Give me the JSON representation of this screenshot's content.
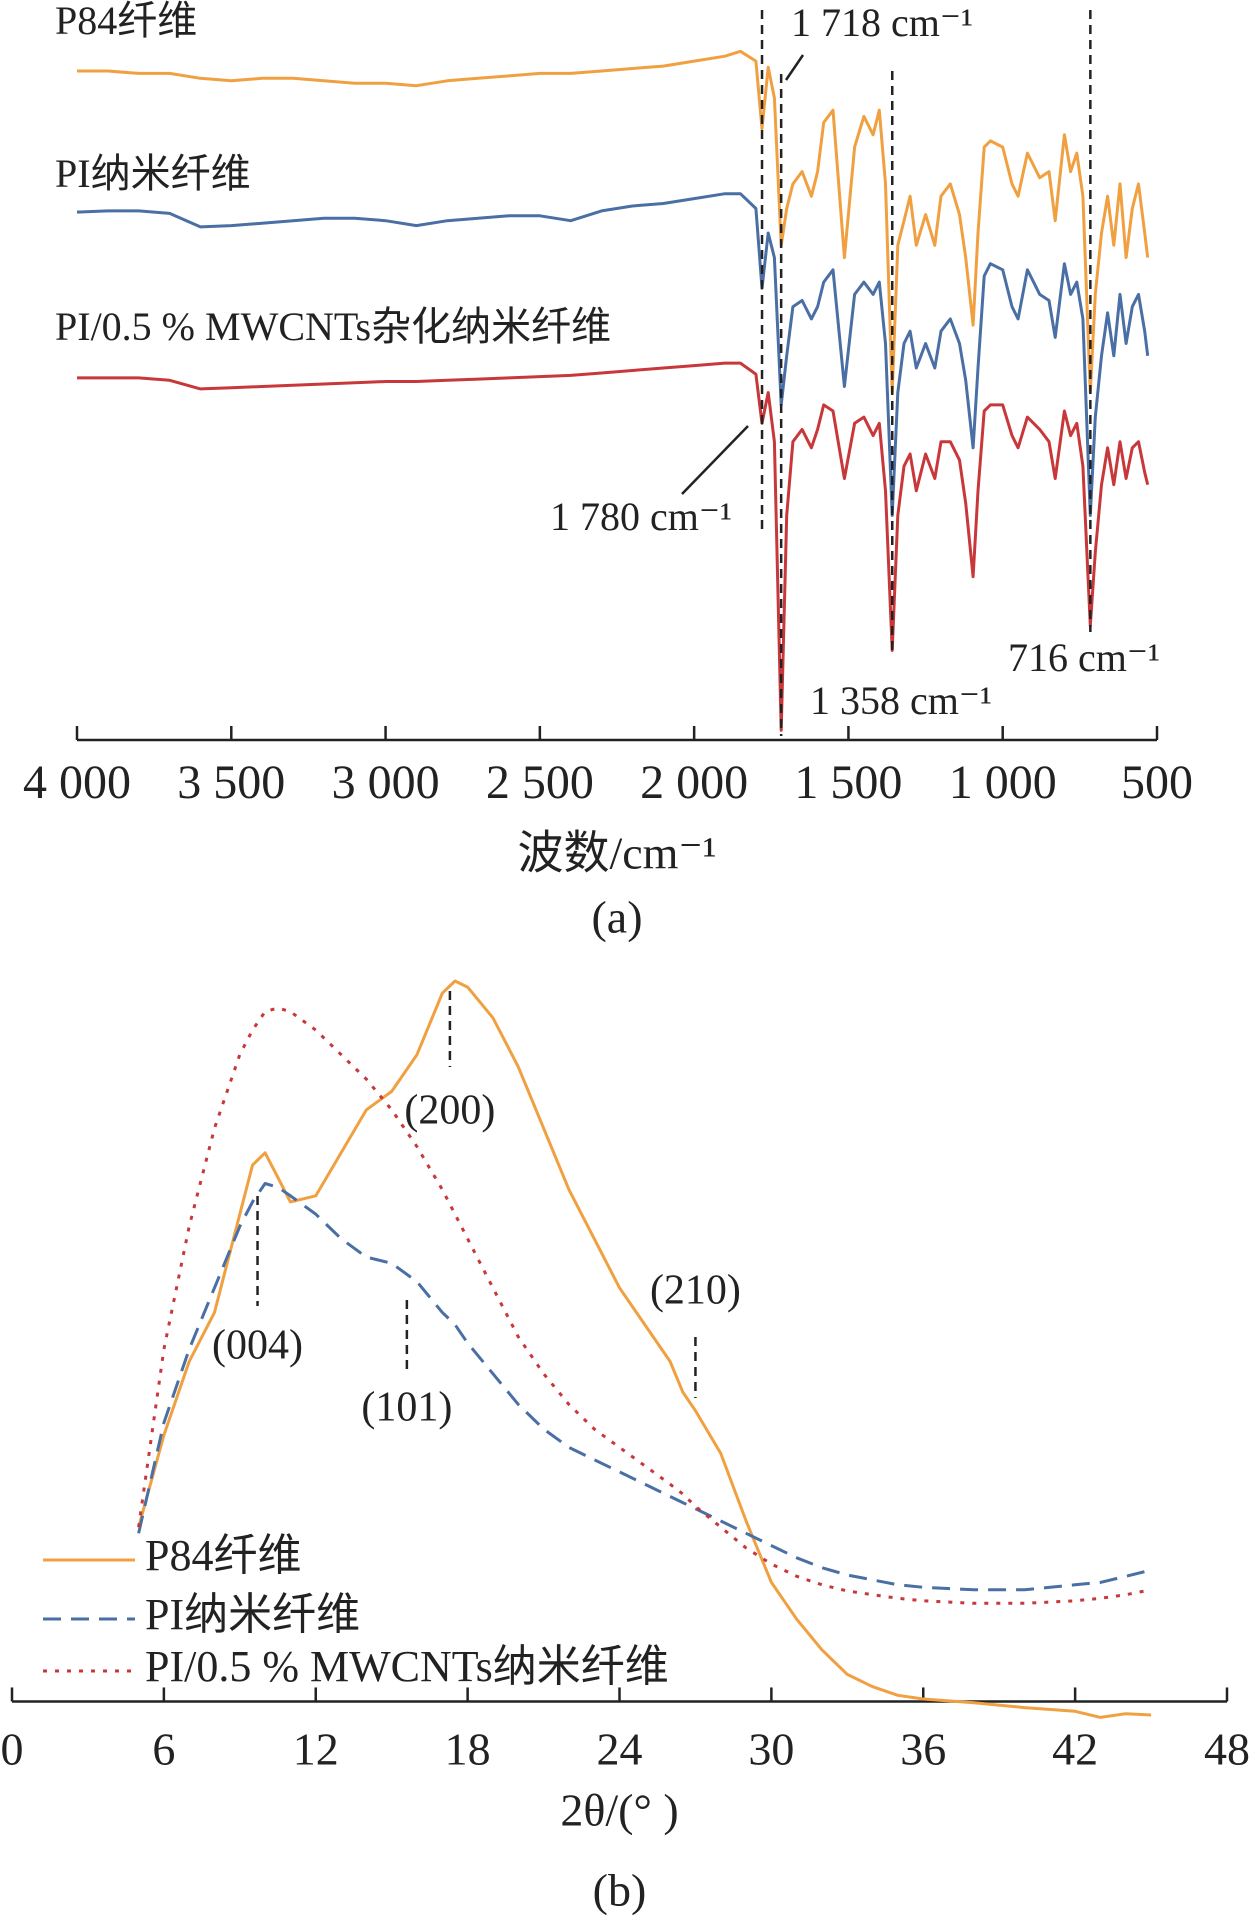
{
  "chart_data": [
    {
      "type": "line",
      "caption": "(a)",
      "x_label": "波数/cm⁻¹",
      "xlim": [
        4000,
        500
      ],
      "ylim": [
        0,
        580
      ],
      "xticks": [
        {
          "value": 4000,
          "label": "4 000"
        },
        {
          "value": 3500,
          "label": "3 500"
        },
        {
          "value": 3000,
          "label": "3 000"
        },
        {
          "value": 2500,
          "label": "2 500"
        },
        {
          "value": 2000,
          "label": "2 000"
        },
        {
          "value": 1500,
          "label": "1 500"
        },
        {
          "value": 1000,
          "label": "1 000"
        },
        500
      ],
      "x": [
        4000,
        3900,
        3800,
        3700,
        3600,
        3500,
        3400,
        3300,
        3200,
        3100,
        3000,
        2900,
        2800,
        2700,
        2600,
        2500,
        2400,
        2300,
        2200,
        2100,
        2000,
        1900,
        1850,
        1800,
        1780,
        1760,
        1740,
        1718,
        1700,
        1680,
        1650,
        1620,
        1600,
        1580,
        1550,
        1513,
        1480,
        1450,
        1420,
        1400,
        1380,
        1358,
        1340,
        1320,
        1300,
        1280,
        1250,
        1220,
        1200,
        1170,
        1140,
        1120,
        1096,
        1080,
        1060,
        1040,
        1000,
        970,
        950,
        920,
        900,
        880,
        850,
        830,
        800,
        780,
        760,
        740,
        716,
        700,
        680,
        660,
        640,
        620,
        600,
        580,
        560,
        540,
        530
      ],
      "series": [
        {
          "name": "P84纤维",
          "color": "#f0a040",
          "values": [
            545,
            545,
            543,
            543,
            539,
            537,
            539,
            539,
            537,
            535,
            535,
            533,
            537,
            539,
            541,
            543,
            543,
            545,
            547,
            549,
            553,
            557,
            561,
            553,
            498,
            548,
            523,
            403,
            433,
            453,
            463,
            443,
            463,
            503,
            513,
            393,
            483,
            508,
            493,
            513,
            453,
            283,
            403,
            423,
            443,
            403,
            428,
            403,
            443,
            453,
            428,
            393,
            338,
            413,
            483,
            488,
            483,
            453,
            443,
            478,
            468,
            458,
            463,
            423,
            493,
            463,
            478,
            443,
            283,
            363,
            413,
            443,
            403,
            453,
            393,
            433,
            453,
            413,
            393
          ]
        },
        {
          "name": "PI纳米纤维",
          "color": "#4a6fa5",
          "values": [
            430,
            431,
            431,
            429,
            418,
            419,
            421,
            423,
            425,
            425,
            423,
            419,
            423,
            425,
            427,
            427,
            423,
            431,
            435,
            437,
            441,
            445,
            445,
            433,
            368,
            413,
            393,
            273,
            313,
            353,
            358,
            343,
            353,
            373,
            383,
            288,
            363,
            373,
            363,
            373,
            323,
            183,
            283,
            323,
            333,
            303,
            323,
            303,
            333,
            343,
            323,
            293,
            238,
            303,
            378,
            388,
            383,
            353,
            343,
            383,
            373,
            363,
            358,
            328,
            388,
            363,
            373,
            343,
            183,
            263,
            313,
            348,
            313,
            363,
            323,
            353,
            363,
            333,
            313
          ]
        },
        {
          "name": "PI/0.5 % MWCNTs杂化纳米纤维",
          "color": "#c8383a",
          "values": [
            295,
            295,
            295,
            293,
            286,
            287,
            288,
            289,
            290,
            291,
            292,
            292,
            293,
            294,
            295,
            296,
            297,
            299,
            301,
            303,
            305,
            307,
            307,
            298,
            258,
            283,
            243,
            8,
            183,
            243,
            253,
            238,
            253,
            273,
            268,
            213,
            258,
            263,
            248,
            258,
            203,
            73,
            183,
            223,
            233,
            203,
            233,
            213,
            243,
            243,
            228,
            193,
            133,
            203,
            268,
            273,
            273,
            248,
            238,
            263,
            258,
            253,
            243,
            213,
            268,
            248,
            258,
            223,
            93,
            153,
            208,
            238,
            208,
            243,
            213,
            238,
            243,
            218,
            208
          ]
        }
      ],
      "annotations": [
        {
          "text": "1 718 cm⁻¹",
          "x": 1718
        },
        {
          "text": "1 780 cm⁻¹",
          "x": 1780
        },
        {
          "text": "1 358 cm⁻¹",
          "x": 1358
        },
        {
          "text": "716 cm⁻¹",
          "x": 716
        }
      ]
    },
    {
      "type": "line",
      "caption": "(b)",
      "x_label": "2θ/(° )",
      "xlim": [
        0,
        48
      ],
      "ylim": [
        -20,
        600
      ],
      "xticks": [
        0,
        6,
        12,
        18,
        24,
        30,
        36,
        42,
        48
      ],
      "legend": "lower-left",
      "x": [
        5,
        6,
        7,
        8,
        9,
        9.5,
        10,
        10.5,
        11,
        12,
        13,
        14,
        15,
        16,
        17,
        17.5,
        18,
        19,
        20,
        21,
        22,
        23,
        24,
        25,
        26,
        26.5,
        27,
        28,
        29,
        30,
        31,
        32,
        33,
        34,
        35,
        36,
        38,
        40,
        42,
        43,
        44,
        45
      ],
      "series": [
        {
          "name": "P84纤维",
          "color": "#f0a040",
          "line_style": "solid",
          "values": [
            142,
            217,
            277,
            317,
            397,
            437,
            447,
            427,
            407,
            412,
            447,
            482,
            497,
            527,
            577,
            587,
            582,
            557,
            517,
            467,
            417,
            377,
            337,
            307,
            277,
            252,
            237,
            202,
            147,
            97,
            67,
            42,
            22,
            12,
            5,
            2,
            -1,
            -5,
            -8,
            -13,
            -10,
            -11
          ]
        },
        {
          "name": "PI纳米纤维",
          "color": "#4a6fa5",
          "line_style": "dashed",
          "values": [
            137,
            227,
            287,
            337,
            387,
            407,
            422,
            419,
            412,
            397,
            377,
            362,
            357,
            342,
            317,
            307,
            292,
            267,
            242,
            222,
            207,
            197,
            187,
            177,
            167,
            162,
            157,
            147,
            137,
            127,
            117,
            109,
            103,
            99,
            95,
            93,
            91,
            91,
            95,
            97,
            102,
            107
          ]
        },
        {
          "name": "PI/0.5 % MWCNTs纳米纤维",
          "color": "#c8383a",
          "line_style": "dotted",
          "values": [
            142,
            287,
            387,
            467,
            527,
            547,
            562,
            565,
            562,
            547,
            527,
            507,
            482,
            452,
            417,
            397,
            377,
            337,
            297,
            267,
            242,
            222,
            207,
            192,
            177,
            169,
            159,
            142,
            125,
            112,
            102,
            95,
            90,
            87,
            84,
            82,
            80,
            80,
            82,
            84,
            87,
            91
          ]
        }
      ],
      "annotations": [
        {
          "text": "(004)",
          "x": 9.7
        },
        {
          "text": "(101)",
          "x": 15.6
        },
        {
          "text": "(200)",
          "x": 17.3
        },
        {
          "text": "(210)",
          "x": 27
        }
      ]
    }
  ]
}
